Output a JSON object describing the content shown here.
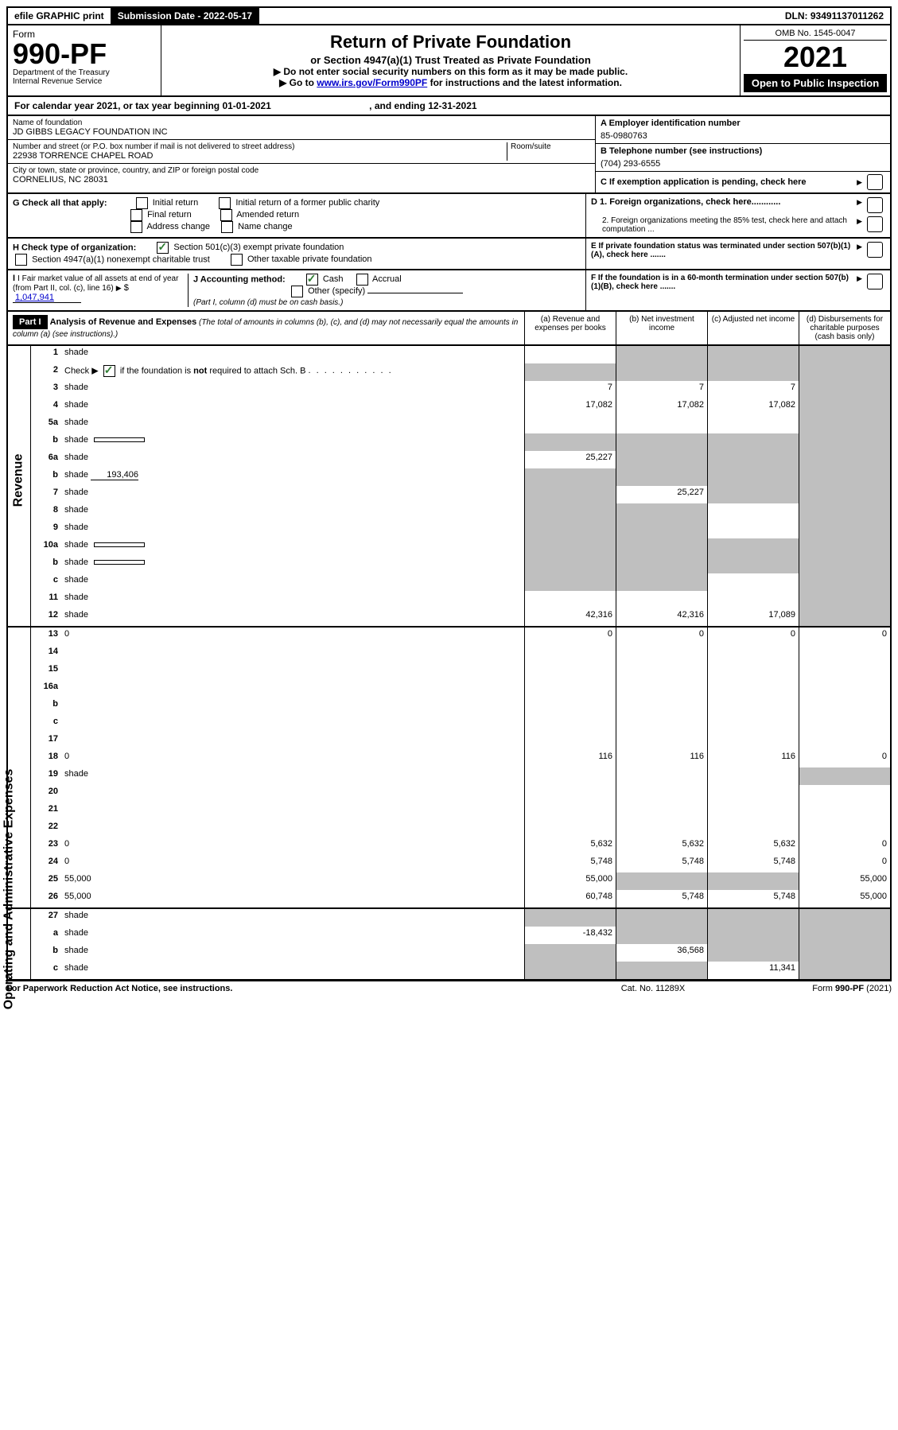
{
  "topbar": {
    "efile": "efile GRAPHIC print",
    "submission_label": "Submission Date - 2022-05-17",
    "dln": "DLN: 93491137011262"
  },
  "header": {
    "form_word": "Form",
    "form_number": "990-PF",
    "dept": "Department of the Treasury",
    "irs": "Internal Revenue Service",
    "title": "Return of Private Foundation",
    "subtitle": "or Section 4947(a)(1) Trust Treated as Private Foundation",
    "note1": "▶ Do not enter social security numbers on this form as it may be made public.",
    "note2_pre": "▶ Go to ",
    "note2_link": "www.irs.gov/Form990PF",
    "note2_post": " for instructions and the latest information.",
    "omb": "OMB No. 1545-0047",
    "year": "2021",
    "open_public": "Open to Public Inspection"
  },
  "cal_year": {
    "prefix": "For calendar year 2021, or tax year beginning ",
    "begin": "01-01-2021",
    "mid": " , and ending ",
    "end": "12-31-2021"
  },
  "info": {
    "name_label": "Name of foundation",
    "name": "JD GIBBS LEGACY FOUNDATION INC",
    "street_label": "Number and street (or P.O. box number if mail is not delivered to street address)",
    "street": "22938 TORRENCE CHAPEL ROAD",
    "room_label": "Room/suite",
    "city_label": "City or town, state or province, country, and ZIP or foreign postal code",
    "city": "CORNELIUS, NC  28031",
    "ein_label": "A Employer identification number",
    "ein": "85-0980763",
    "phone_label": "B Telephone number (see instructions)",
    "phone": "(704) 293-6555",
    "c_label": "C If exemption application is pending, check here",
    "d1_label": "D 1. Foreign organizations, check here............",
    "d2_label": "2. Foreign organizations meeting the 85% test, check here and attach computation ...",
    "e_label": "E  If private foundation status was terminated under section 507(b)(1)(A), check here .......",
    "f_label": "F  If the foundation is in a 60-month termination under section 507(b)(1)(B), check here ......."
  },
  "g": {
    "label": "G Check all that apply:",
    "initial": "Initial return",
    "initial_former": "Initial return of a former public charity",
    "final": "Final return",
    "amended": "Amended return",
    "address": "Address change",
    "name_change": "Name change"
  },
  "h": {
    "label": "H Check type of organization:",
    "sec501": "Section 501(c)(3) exempt private foundation",
    "sec4947": "Section 4947(a)(1) nonexempt charitable trust",
    "other_tax": "Other taxable private foundation"
  },
  "i": {
    "label": "I Fair market value of all assets at end of year (from Part II, col. (c), line 16)",
    "value": "1,047,941"
  },
  "j": {
    "label": "J Accounting method:",
    "cash": "Cash",
    "accrual": "Accrual",
    "other": "Other (specify)",
    "note": "(Part I, column (d) must be on cash basis.)"
  },
  "part1": {
    "label": "Part I",
    "title": "Analysis of Revenue and Expenses",
    "title_note": " (The total of amounts in columns (b), (c), and (d) may not necessarily equal the amounts in column (a) (see instructions).)",
    "col_a": "(a)  Revenue and expenses per books",
    "col_b": "(b)  Net investment income",
    "col_c": "(c)  Adjusted net income",
    "col_d": "(d)  Disbursements for charitable purposes (cash basis only)"
  },
  "side": {
    "revenue": "Revenue",
    "expenses": "Operating and Administrative Expenses"
  },
  "rows": [
    {
      "n": "1",
      "d": "shade",
      "a": "",
      "b": "shade",
      "c": "shade"
    },
    {
      "n": "2",
      "d": "shade",
      "a": "shade",
      "b": "shade",
      "c": "shade",
      "check": true
    },
    {
      "n": "3",
      "d": "shade",
      "a": "7",
      "b": "7",
      "c": "7"
    },
    {
      "n": "4",
      "d": "shade",
      "a": "17,082",
      "b": "17,082",
      "c": "17,082"
    },
    {
      "n": "5a",
      "d": "shade",
      "a": "",
      "b": "",
      "c": ""
    },
    {
      "n": "b",
      "d": "shade",
      "a": "shade",
      "b": "shade",
      "c": "shade",
      "inline_box": ""
    },
    {
      "n": "6a",
      "d": "shade",
      "a": "25,227",
      "b": "shade",
      "c": "shade"
    },
    {
      "n": "b",
      "d": "shade",
      "a": "shade",
      "b": "shade",
      "c": "shade",
      "inline_val": "193,406"
    },
    {
      "n": "7",
      "d": "shade",
      "a": "shade",
      "b": "25,227",
      "c": "shade"
    },
    {
      "n": "8",
      "d": "shade",
      "a": "shade",
      "b": "shade",
      "c": ""
    },
    {
      "n": "9",
      "d": "shade",
      "a": "shade",
      "b": "shade",
      "c": ""
    },
    {
      "n": "10a",
      "d": "shade",
      "a": "shade",
      "b": "shade",
      "c": "shade",
      "inline_box": ""
    },
    {
      "n": "b",
      "d": "shade",
      "a": "shade",
      "b": "shade",
      "c": "shade",
      "inline_box": ""
    },
    {
      "n": "c",
      "d": "shade",
      "a": "shade",
      "b": "shade",
      "c": ""
    },
    {
      "n": "11",
      "d": "shade",
      "a": "",
      "b": "",
      "c": ""
    },
    {
      "n": "12",
      "d": "shade",
      "a": "42,316",
      "b": "42,316",
      "c": "17,089",
      "bold": true
    }
  ],
  "exp_rows": [
    {
      "n": "13",
      "d": "0",
      "a": "0",
      "b": "0",
      "c": "0"
    },
    {
      "n": "14",
      "d": "",
      "a": "",
      "b": "",
      "c": ""
    },
    {
      "n": "15",
      "d": "",
      "a": "",
      "b": "",
      "c": ""
    },
    {
      "n": "16a",
      "d": "",
      "a": "",
      "b": "",
      "c": ""
    },
    {
      "n": "b",
      "d": "",
      "a": "",
      "b": "",
      "c": ""
    },
    {
      "n": "c",
      "d": "",
      "a": "",
      "b": "",
      "c": ""
    },
    {
      "n": "17",
      "d": "",
      "a": "",
      "b": "",
      "c": ""
    },
    {
      "n": "18",
      "d": "0",
      "a": "116",
      "b": "116",
      "c": "116"
    },
    {
      "n": "19",
      "d": "shade",
      "a": "",
      "b": "",
      "c": ""
    },
    {
      "n": "20",
      "d": "",
      "a": "",
      "b": "",
      "c": ""
    },
    {
      "n": "21",
      "d": "",
      "a": "",
      "b": "",
      "c": ""
    },
    {
      "n": "22",
      "d": "",
      "a": "",
      "b": "",
      "c": ""
    },
    {
      "n": "23",
      "d": "0",
      "a": "5,632",
      "b": "5,632",
      "c": "5,632"
    },
    {
      "n": "24",
      "d": "0",
      "a": "5,748",
      "b": "5,748",
      "c": "5,748",
      "bold": true
    },
    {
      "n": "25",
      "d": "55,000",
      "a": "55,000",
      "b": "shade",
      "c": "shade"
    },
    {
      "n": "26",
      "d": "55,000",
      "a": "60,748",
      "b": "5,748",
      "c": "5,748",
      "bold": true
    }
  ],
  "final_rows": [
    {
      "n": "27",
      "d": "shade",
      "a": "shade",
      "b": "shade",
      "c": "shade"
    },
    {
      "n": "a",
      "d": "shade",
      "a": "-18,432",
      "b": "shade",
      "c": "shade"
    },
    {
      "n": "b",
      "d": "shade",
      "a": "shade",
      "b": "36,568",
      "c": "shade"
    },
    {
      "n": "c",
      "d": "shade",
      "a": "shade",
      "b": "shade",
      "c": "11,341"
    }
  ],
  "footer": {
    "left": "For Paperwork Reduction Act Notice, see instructions.",
    "mid": "Cat. No. 11289X",
    "right": "Form 990-PF (2021)"
  }
}
